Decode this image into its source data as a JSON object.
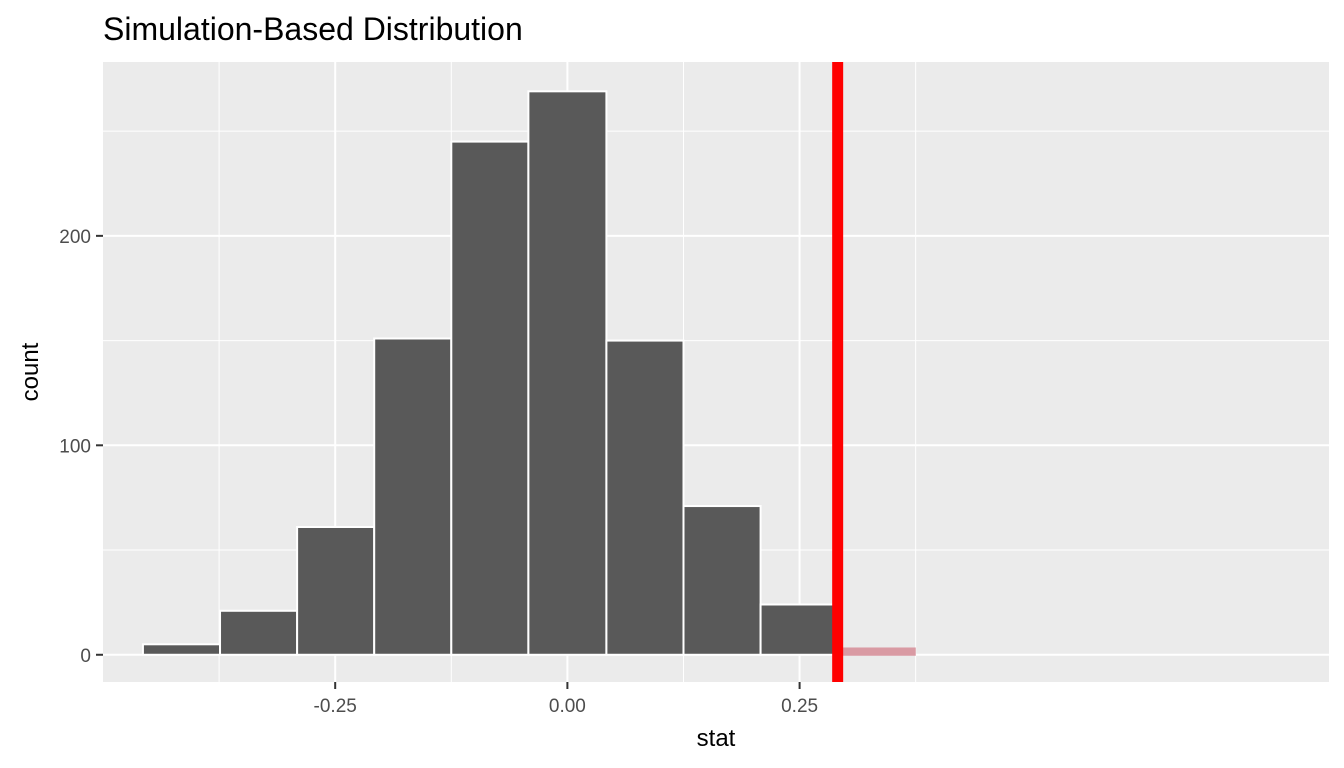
{
  "chart_data": {
    "type": "bar",
    "title": "Simulation-Based Distribution",
    "xlabel": "stat",
    "ylabel": "count",
    "xlim": [
      -0.5,
      0.82
    ],
    "ylim": [
      -13,
      283
    ],
    "x_ticks": [
      {
        "value": -0.25,
        "label": "-0.25"
      },
      {
        "value": 0.0,
        "label": "0.00"
      },
      {
        "value": 0.25,
        "label": "0.25"
      }
    ],
    "y_ticks": [
      {
        "value": 0,
        "label": "0"
      },
      {
        "value": 100,
        "label": "100"
      },
      {
        "value": 200,
        "label": "200"
      }
    ],
    "bins": [
      {
        "start": -0.457,
        "end": -0.374,
        "count": 5
      },
      {
        "start": -0.374,
        "end": -0.291,
        "count": 21
      },
      {
        "start": -0.291,
        "end": -0.208,
        "count": 61
      },
      {
        "start": -0.208,
        "end": -0.125,
        "count": 151
      },
      {
        "start": -0.125,
        "end": -0.042,
        "count": 245
      },
      {
        "start": -0.042,
        "end": 0.042,
        "count": 269
      },
      {
        "start": 0.042,
        "end": 0.125,
        "count": 150
      },
      {
        "start": 0.125,
        "end": 0.208,
        "count": 71
      },
      {
        "start": 0.208,
        "end": 0.291,
        "count": 24
      },
      {
        "start": 0.291,
        "end": 0.374,
        "count": 3
      }
    ],
    "observed_stat": 0.291,
    "colors": {
      "panel": "#ebebeb",
      "grid": "#ffffff",
      "bar_fill": "#595959",
      "bar_outline": "#ffffff",
      "shaded_fill": "#d99aa3",
      "shade_line": "#ff0000"
    },
    "grid": true
  }
}
